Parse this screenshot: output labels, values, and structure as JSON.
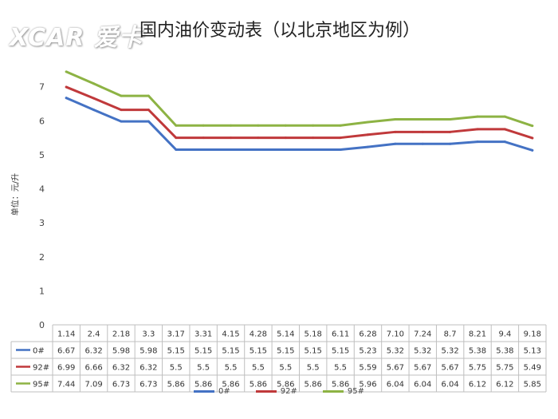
{
  "logo_text": "XCAR 爱卡",
  "chart_data": {
    "type": "line",
    "title": "国内油价变动表（以北京地区为例）",
    "ylabel": "单位：元/升",
    "xlabel": "",
    "ylim": [
      0,
      8
    ],
    "yticks": [
      0,
      1,
      2,
      3,
      4,
      5,
      6,
      7
    ],
    "grid": false,
    "legend_position": "bottom",
    "categories": [
      "1.14",
      "2.4",
      "2.18",
      "3.3",
      "3.17",
      "3.31",
      "4.15",
      "4.28",
      "5.14",
      "5.18",
      "6.11",
      "6.28",
      "7.10",
      "7.24",
      "8.7",
      "8.21",
      "9.4",
      "9.18"
    ],
    "series": [
      {
        "name": "0#",
        "color": "#4472C4",
        "values": [
          6.67,
          6.32,
          5.98,
          5.98,
          5.15,
          5.15,
          5.15,
          5.15,
          5.15,
          5.15,
          5.15,
          5.23,
          5.32,
          5.32,
          5.32,
          5.38,
          5.38,
          5.13
        ]
      },
      {
        "name": "92#",
        "color": "#C0393B",
        "values": [
          6.99,
          6.66,
          6.32,
          6.32,
          5.5,
          5.5,
          5.5,
          5.5,
          5.5,
          5.5,
          5.5,
          5.59,
          5.67,
          5.67,
          5.67,
          5.75,
          5.75,
          5.49
        ]
      },
      {
        "name": "95#",
        "color": "#8DB344",
        "values": [
          7.44,
          7.09,
          6.73,
          6.73,
          5.86,
          5.86,
          5.86,
          5.86,
          5.86,
          5.86,
          5.86,
          5.96,
          6.04,
          6.04,
          6.04,
          6.12,
          6.12,
          5.85
        ]
      }
    ]
  }
}
